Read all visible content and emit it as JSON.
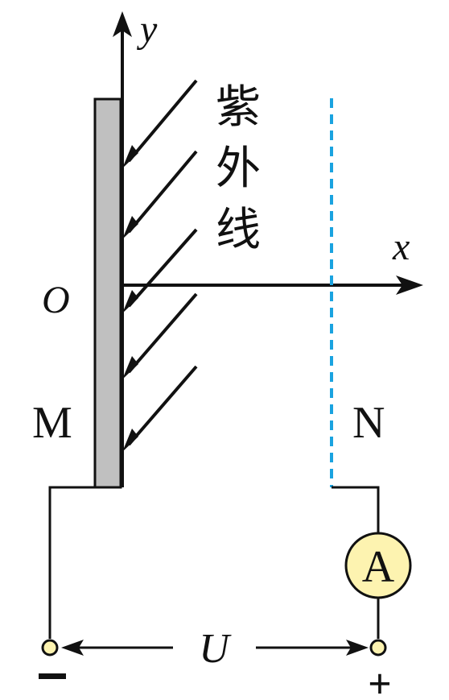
{
  "labels": {
    "y_axis": "y",
    "x_axis": "x",
    "origin": "O",
    "uv_line1": "紫",
    "uv_line2": "外",
    "uv_line3": "线",
    "plate_m": "M",
    "plate_n": "N",
    "ammeter": "A",
    "voltage": "U",
    "terminal_negative": "−",
    "terminal_positive": "+"
  },
  "colors": {
    "plate_m_fill": "#c0c0c0",
    "mesh_n": "#1aa3e0",
    "ammeter_fill": "#fdf3b0",
    "terminal_fill": "#fdf3b0",
    "line": "#111111"
  }
}
